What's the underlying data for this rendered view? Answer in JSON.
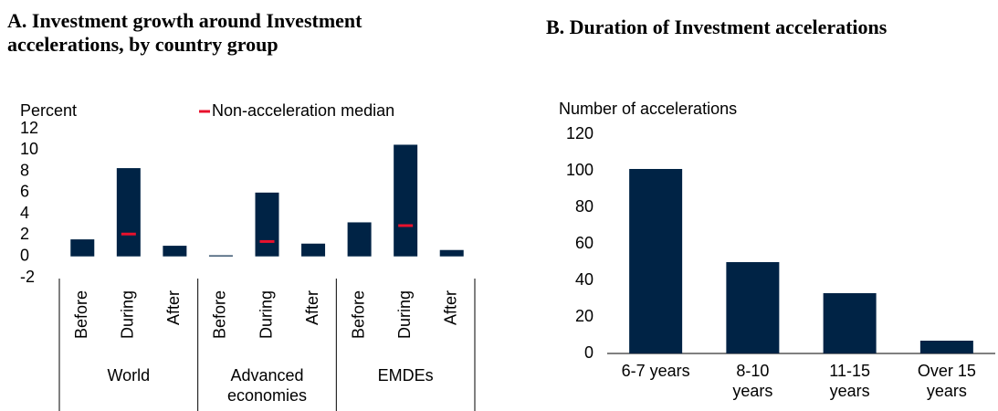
{
  "chart_data": [
    {
      "type": "bar",
      "title": "A. Investment growth around Investment accelerations, by country group",
      "y_label": "Percent",
      "categories": [
        "Before",
        "During",
        "After",
        "Before",
        "During",
        "After",
        "Before",
        "During",
        "After"
      ],
      "groups": [
        "World",
        "Advanced economies",
        "EMDEs"
      ],
      "series": [
        {
          "name": null,
          "color": "#002345",
          "values": [
            1.6,
            8.3,
            1.0,
            0.1,
            6.0,
            1.2,
            3.2,
            10.5,
            0.6
          ]
        },
        {
          "name": "Non-acceleration median",
          "color": "#e8112d",
          "values": [
            null,
            2.1,
            null,
            null,
            1.4,
            null,
            null,
            2.9,
            null
          ]
        }
      ],
      "ylim": [
        -2,
        12
      ],
      "yticks": [
        -2,
        0,
        2,
        4,
        6,
        8,
        10,
        12
      ]
    },
    {
      "type": "bar",
      "title": "B. Duration of Investment accelerations",
      "y_label": "Number of accelerations",
      "categories": [
        "6-7 years",
        "8-10 years",
        "11-15 years",
        "Over 15 years"
      ],
      "values": [
        101,
        50,
        33,
        7
      ],
      "color": "#002345",
      "ylim": [
        0,
        120
      ],
      "yticks": [
        0,
        20,
        40,
        60,
        80,
        100,
        120
      ]
    }
  ]
}
